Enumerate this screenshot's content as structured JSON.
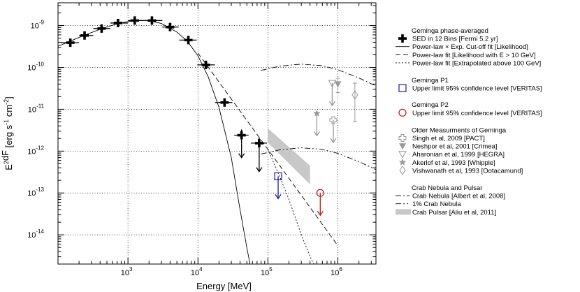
{
  "chart_data": {
    "type": "scatter",
    "title": "",
    "xlabel": "Energy [MeV]",
    "ylabel": "E^2 dF/dE [erg s^-1 cm^-2]",
    "xscale": "log",
    "yscale": "log",
    "xlim": [
      100,
      3500000
    ],
    "ylim": [
      2e-15,
      3.5e-09
    ],
    "x_ticks": [
      {
        "value": 1000,
        "base": "10",
        "exp": "3"
      },
      {
        "value": 10000,
        "base": "10",
        "exp": "4"
      },
      {
        "value": 100000,
        "base": "10",
        "exp": "5"
      },
      {
        "value": 1000000,
        "base": "10",
        "exp": "6"
      }
    ],
    "y_ticks": [
      {
        "value": 1e-09,
        "base": "10",
        "exp": "-9"
      },
      {
        "value": 1e-10,
        "base": "10",
        "exp": "-10"
      },
      {
        "value": 1e-11,
        "base": "10",
        "exp": "-11"
      },
      {
        "value": 1e-12,
        "base": "10",
        "exp": "-12"
      },
      {
        "value": 1e-13,
        "base": "10",
        "exp": "-13"
      },
      {
        "value": 1e-14,
        "base": "10",
        "exp": "-14"
      }
    ],
    "grid": "dotted at decades",
    "series": [
      {
        "name": "SED in 12 Bins [Fermi 5.2 yr]",
        "kind": "points_xy_errors",
        "color": "#000000",
        "points": [
          {
            "x": 150,
            "y": 3.9e-10,
            "xlo": 110,
            "xhi": 200,
            "ylo": 3.4e-10,
            "yhi": 4.4e-10
          },
          {
            "x": 240,
            "y": 5.8e-10,
            "xlo": 200,
            "xhi": 320,
            "ylo": 5.2e-10,
            "yhi": 6.4e-10
          },
          {
            "x": 420,
            "y": 8.5e-10,
            "xlo": 320,
            "xhi": 560,
            "ylo": 7.8e-10,
            "yhi": 9.2e-10
          },
          {
            "x": 720,
            "y": 1.15e-09,
            "xlo": 560,
            "xhi": 1000,
            "ylo": 1.08e-09,
            "yhi": 1.22e-09
          },
          {
            "x": 1250,
            "y": 1.32e-09,
            "xlo": 1000,
            "xhi": 1750,
            "ylo": 1.26e-09,
            "yhi": 1.38e-09
          },
          {
            "x": 2200,
            "y": 1.32e-09,
            "xlo": 1750,
            "xhi": 3100,
            "ylo": 1.25e-09,
            "yhi": 1.39e-09
          },
          {
            "x": 4000,
            "y": 9.2e-10,
            "xlo": 3100,
            "xhi": 5300,
            "ylo": 8.5e-10,
            "yhi": 9.9e-10
          },
          {
            "x": 7300,
            "y": 4.5e-10,
            "xlo": 5400,
            "xhi": 9600,
            "ylo": 4.1e-10,
            "yhi": 4.9e-10
          },
          {
            "x": 13000,
            "y": 1.15e-10,
            "xlo": 9800,
            "xhi": 17500,
            "ylo": 1e-10,
            "yhi": 1.3e-10
          },
          {
            "x": 24000,
            "y": 1.45e-11,
            "xlo": 17500,
            "xhi": 31000,
            "ylo": 1.25e-11,
            "yhi": 1.65e-11
          },
          {
            "x": 42000,
            "y": 2.4e-12,
            "xlo": 33000,
            "xhi": 53000,
            "ylo": 1.5e-12,
            "yhi": 3.3e-12,
            "upper_limit": true
          },
          {
            "x": 75000,
            "y": 1.55e-12,
            "xlo": 57000,
            "xhi": 97000,
            "ylo": 7e-13,
            "yhi": 2.1e-12,
            "upper_limit": true
          }
        ]
      },
      {
        "name": "Power-law × Exp. Cut-off fit [Likelihood]",
        "kind": "curve",
        "style": "solid",
        "x": [
          100,
          200,
          400,
          700,
          1000,
          1500,
          2000,
          3000,
          5000,
          7000,
          10000,
          14000,
          20000,
          30000,
          40000,
          50000,
          60000
        ],
        "y": [
          3.2e-10,
          5.2e-10,
          8.2e-10,
          1.1e-09,
          1.25e-09,
          1.33e-09,
          1.3e-09,
          1.12e-09,
          7e-10,
          4.3e-10,
          1.9e-10,
          6e-11,
          1.1e-11,
          7e-13,
          4e-14,
          5e-15,
          1e-15
        ]
      },
      {
        "name": "Power-law fit [Likelihood with E > 10 GeV]",
        "kind": "curve",
        "style": "dashed",
        "x": [
          10000,
          100000,
          1000000
        ],
        "y": [
          2.2e-10,
          1.1e-12,
          5.5e-15
        ]
      },
      {
        "name": "Power-law fit [Extrapolated above 100 GeV]",
        "kind": "curve",
        "style": "dotted",
        "x": [
          100000,
          150000,
          200000,
          300000,
          400000,
          500000,
          600000
        ],
        "y": [
          1.1e-12,
          2.3e-13,
          7e-14,
          1e-14,
          3e-15,
          1.5e-15,
          1e-15
        ]
      },
      {
        "name": "Crab Nebula [Albert et al, 2008]",
        "kind": "curve",
        "style": "dashdot",
        "x": [
          80000,
          150000,
          300000,
          600000,
          1000000,
          2000000,
          3500000
        ],
        "y": [
          8.5e-11,
          1.08e-10,
          1.2e-10,
          1.1e-10,
          8.8e-11,
          5.6e-11,
          3.6e-11
        ]
      },
      {
        "name": "1% Crab Nebula",
        "kind": "curve",
        "style": "dashdotdot",
        "x": [
          80000,
          150000,
          300000,
          600000,
          1000000,
          2000000,
          3500000
        ],
        "y": [
          8.5e-13,
          1.08e-12,
          1.2e-12,
          1.1e-12,
          8.8e-13,
          5.6e-13,
          3.6e-13
        ]
      },
      {
        "name": "Crab Pulsar [Aliu et al, 2011]",
        "kind": "band",
        "color": "#c8c8c8",
        "x": [
          100000,
          400000
        ],
        "upper": [
          3.5e-12,
          4.5e-13
        ],
        "lower": [
          1.6e-12,
          1.6e-13
        ]
      },
      {
        "name": "Geminga P1 - Upper limit 95% confidence level [VERITAS]",
        "kind": "upper_limit",
        "marker": "square",
        "color": "#1a1aa0",
        "points": [
          {
            "x": 140000,
            "y": 2.5e-13
          }
        ]
      },
      {
        "name": "Geminga P2 - Upper limit 95% confidence level [VERITAS]",
        "kind": "upper_limit",
        "marker": "circle",
        "color": "#c81414",
        "points": [
          {
            "x": 560000,
            "y": 1e-13
          }
        ]
      },
      {
        "name": "Singh et al, 2009 [PACT]",
        "kind": "upper_limit",
        "marker": "cross",
        "color": "#999999",
        "points": [
          {
            "x": 860000,
            "y": 5.5e-12
          }
        ]
      },
      {
        "name": "Neshpor et al, 2001 [Crimea]",
        "kind": "points_y_errors",
        "marker": "triangle-down-filled",
        "color": "#999999",
        "points": [
          {
            "x": 1000000,
            "y": 4e-11,
            "ylo": 2.5e-11,
            "yhi": 5.5e-11
          }
        ]
      },
      {
        "name": "Aharonian et al, 1999 [HEGRA]",
        "kind": "upper_limit",
        "marker": "triangle-down-open",
        "color": "#999999",
        "points": [
          {
            "x": 830000,
            "y": 4.2e-11
          }
        ]
      },
      {
        "name": "Akerlof et al, 1993 [Whipple]",
        "kind": "upper_limit",
        "marker": "star",
        "color": "#999999",
        "points": [
          {
            "x": 500000,
            "y": 8e-12
          }
        ]
      },
      {
        "name": "Vishwanath et al, 1993 [Ootacamund]",
        "kind": "points_y_errors",
        "marker": "diamond-open",
        "color": "#999999",
        "points": [
          {
            "x": 1750000,
            "y": 2.2e-11,
            "ylo": 5e-12,
            "yhi": 4.2e-11
          }
        ]
      }
    ],
    "legend_location": "right outside",
    "legend": [
      {
        "type": "header",
        "text": "Geminga phase-averaged"
      },
      {
        "type": "entry",
        "symbol": "black-cross",
        "text": "SED in 12 Bins [Fermi 5.2 yr]"
      },
      {
        "type": "entry",
        "symbol": "line-solid",
        "text": "Power-law × Exp. Cut-off fit [Likelihood]"
      },
      {
        "type": "entry",
        "symbol": "line-dashed",
        "text": "Power-law fit [Likelihood with E > 10 GeV]"
      },
      {
        "type": "entry",
        "symbol": "line-dotted",
        "text": "Power-law fit [Extrapolated above 100 GeV]"
      },
      {
        "type": "header",
        "text": "Geminga P1"
      },
      {
        "type": "entry",
        "symbol": "blue-square",
        "text": "Upper limit 95% confidence level [VERITAS]"
      },
      {
        "type": "header",
        "text": "Geminga P2"
      },
      {
        "type": "entry",
        "symbol": "red-circle",
        "text": "Upper limit 95% confidence level [VERITAS]"
      },
      {
        "type": "header",
        "text": "Older Measurments of Geminga"
      },
      {
        "type": "entry",
        "symbol": "gray-cross",
        "text": "Singh et al, 2009 [PACT]"
      },
      {
        "type": "entry",
        "symbol": "gray-tri-filled",
        "text": "Neshpor et al, 2001 [Crimea]"
      },
      {
        "type": "entry",
        "symbol": "gray-tri-open",
        "text": "Aharonian et al, 1999 [HEGRA]"
      },
      {
        "type": "entry",
        "symbol": "gray-star",
        "text": "Akerlof et al, 1993 [Whipple]"
      },
      {
        "type": "entry",
        "symbol": "gray-diamond",
        "text": "Vishwanath et al, 1993 [Ootacamund]"
      },
      {
        "type": "header",
        "text": "Crab Nebula and Pulsar"
      },
      {
        "type": "entry",
        "symbol": "line-dashdot",
        "text": "Crab Nebula [Albert et al, 2008]"
      },
      {
        "type": "entry",
        "symbol": "line-dashdotdot",
        "text": "1% Crab Nebula"
      },
      {
        "type": "entry",
        "symbol": "gray-band",
        "text": "Crab Pulsar [Aliu et al, 2011]"
      }
    ]
  }
}
